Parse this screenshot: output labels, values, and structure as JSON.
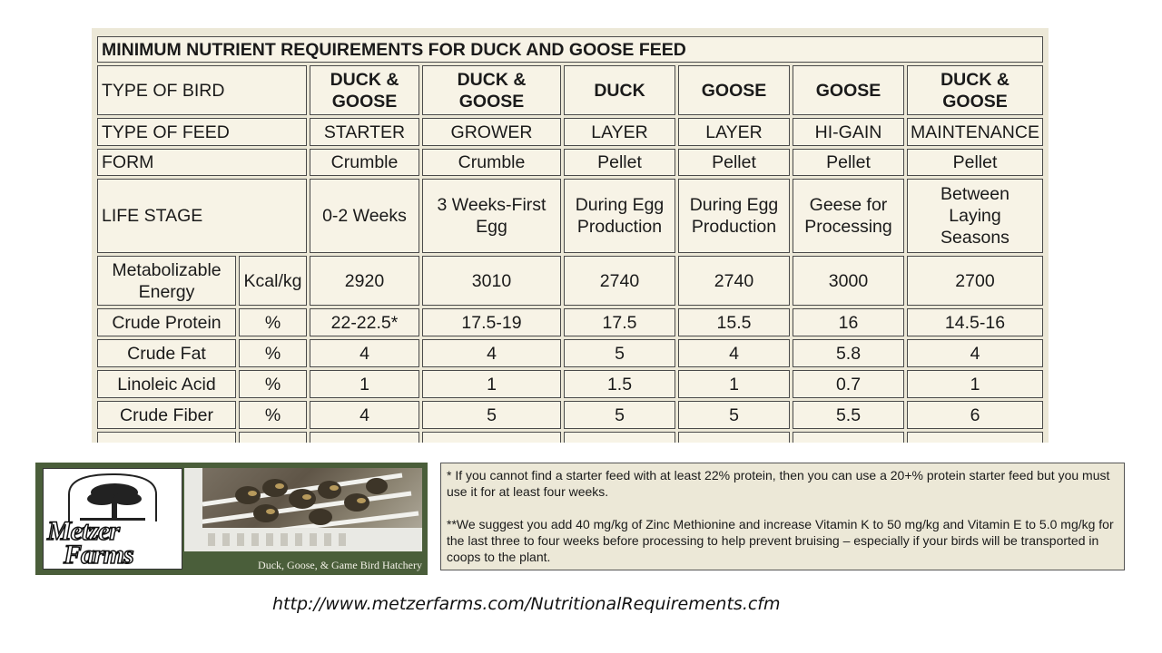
{
  "table": {
    "title": "MINIMUM NUTRIENT REQUIREMENTS FOR DUCK AND GOOSE FEED",
    "type_of_bird_label": "TYPE OF BIRD",
    "type_of_feed_label": "TYPE OF FEED",
    "form_label": "FORM",
    "life_stage_label": "LIFE STAGE",
    "columns": [
      {
        "bird": "DUCK & GOOSE",
        "feed": "STARTER",
        "form": "Crumble",
        "stage": "0-2 Weeks"
      },
      {
        "bird": "DUCK & GOOSE",
        "feed": "GROWER",
        "form": "Crumble",
        "stage": "3 Weeks-First Egg"
      },
      {
        "bird": "DUCK",
        "feed": "LAYER",
        "form": "Pellet",
        "stage": "During Egg Production"
      },
      {
        "bird": "GOOSE",
        "feed": "LAYER",
        "form": "Pellet",
        "stage": "During Egg Production"
      },
      {
        "bird": "GOOSE",
        "feed": "HI-GAIN",
        "form": "Pellet",
        "stage": "Geese for Processing"
      },
      {
        "bird": "DUCK & GOOSE",
        "feed": "MAINTENANCE",
        "form": "Pellet",
        "stage": "Between Laying Seasons"
      }
    ],
    "nutrients": [
      {
        "name": "Metabolizable Energy",
        "unit": "Kcal/kg",
        "values": [
          "2920",
          "3010",
          "2740",
          "2740",
          "3000",
          "2700"
        ]
      },
      {
        "name": "Crude Protein",
        "unit": "%",
        "values": [
          "22-22.5*",
          "17.5-19",
          "17.5",
          "15.5",
          "16",
          "14.5-16"
        ]
      },
      {
        "name": "Crude Fat",
        "unit": "%",
        "values": [
          "4",
          "4",
          "5",
          "4",
          "5.8",
          "4"
        ]
      },
      {
        "name": "Linoleic Acid",
        "unit": "%",
        "values": [
          "1",
          "1",
          "1.5",
          "1",
          "0.7",
          "1"
        ]
      },
      {
        "name": "Crude Fiber",
        "unit": "%",
        "values": [
          "4",
          "5",
          "5",
          "5",
          "5.5",
          "6"
        ]
      }
    ]
  },
  "logo": {
    "line1": "Metzer",
    "line2": "Farms",
    "tagline": "Duck, Goose, & Game Bird Hatchery"
  },
  "notes": {
    "note1": "* If you cannot find a starter feed with at least 22% protein, then you can use a 20+% protein starter feed but you must use it for at least four weeks.",
    "note2": "**We suggest you add 40 mg/kg of Zinc Methionine and increase Vitamin K to 50 mg/kg and Vitamin E to 5.0 mg/kg for the last three to four weeks before processing to help prevent bruising – especially if your birds will be transported in coops to the plant."
  },
  "source_url": "http://www.metzerfarms.com/NutritionalRequirements.cfm"
}
